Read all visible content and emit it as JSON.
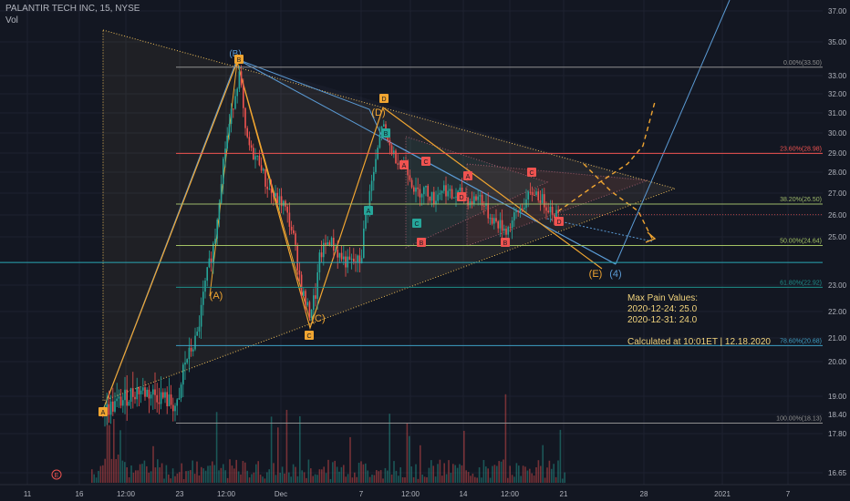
{
  "header": {
    "title": "PALANTIR TECH INC, 15, NYSE",
    "volume_label": "Vol"
  },
  "colors": {
    "background": "#131722",
    "up": "#26a69a",
    "down": "#ef5350",
    "triangle": "#f0c05a",
    "wave_blue": "#5b9bd5",
    "wave_orange": "#f0a531",
    "price_badge": "#ef5350",
    "current_badge": "#26a69a"
  },
  "price_axis": {
    "ticks": [
      "37.00",
      "35.00",
      "33.00",
      "32.00",
      "31.00",
      "30.00",
      "29.00",
      "28.00",
      "27.00",
      "26.00",
      "25.00",
      "23.00",
      "22.00",
      "21.00",
      "20.00",
      "19.00",
      "18.40",
      "17.80",
      "16.65"
    ]
  },
  "time_axis": {
    "ticks": [
      "11",
      "16",
      "12:00",
      "23",
      "12:00",
      "Dec",
      "7",
      "12:00",
      "14",
      "12:00",
      "21",
      "28",
      "2021",
      "7"
    ]
  },
  "price_badges": {
    "current": "26.01",
    "level": "23.94"
  },
  "chart_data": {
    "type": "candlestick",
    "title": "PALANTIR TECH INC, 15, NYSE",
    "ylim": [
      16.5,
      37.5
    ],
    "fib_levels": [
      {
        "label": "0.00%(33.50)",
        "value": 33.5
      },
      {
        "label": "23.60%(28.98)",
        "value": 28.98
      },
      {
        "label": "38.20%(26.50)",
        "value": 26.5
      },
      {
        "label": "50.00%(24.64)",
        "value": 24.64
      },
      {
        "label": "61.80%(22.92)",
        "value": 22.92
      },
      {
        "label": "78.60%(20.68)",
        "value": 20.68
      },
      {
        "label": "100.00%(18.13)",
        "value": 18.13
      }
    ],
    "horizontal_line": 23.94,
    "wave_labels": [
      "(B)",
      "B",
      "(D)",
      "D",
      "(A)",
      "(C)",
      "C",
      "A",
      "(E)",
      "(4)",
      "A",
      "B",
      "C",
      "D",
      "E"
    ]
  },
  "annotation": {
    "title": "Max Pain Values:",
    "line1": "2020-12-24: 25.0",
    "line2": "2020-12-31: 24.0",
    "calc": "Calculated at 10:01ET | 12.18.2020"
  }
}
